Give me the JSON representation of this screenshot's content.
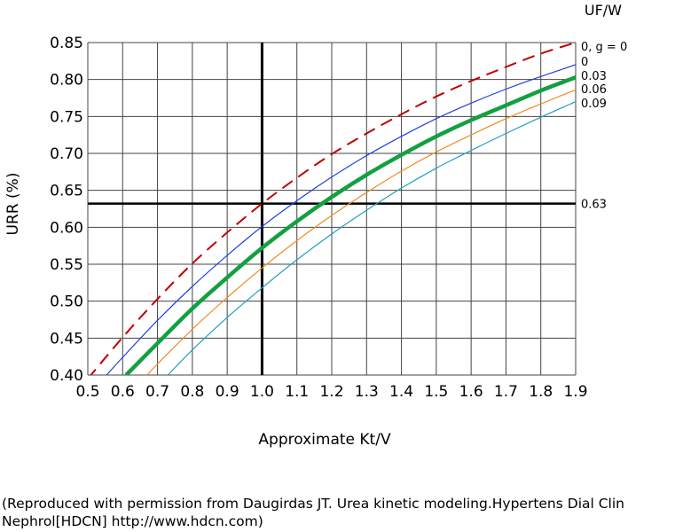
{
  "chart_data": {
    "type": "line",
    "xlabel": "Approximate Kt/V",
    "ylabel": "URR (%)",
    "legend_title": "UF/W",
    "xlim": [
      0.5,
      1.9
    ],
    "ylim": [
      0.4,
      0.85
    ],
    "x_ticks": [
      "0.5",
      "0.6",
      "0.7",
      "0.8",
      "0.9",
      "1.0",
      "1.1",
      "1.2",
      "1.3",
      "1.4",
      "1.5",
      "1.6",
      "1.7",
      "1.8",
      "1.9"
    ],
    "y_ticks": [
      "0.40",
      "0.45",
      "0.50",
      "0.55",
      "0.60",
      "0.65",
      "0.70",
      "0.75",
      "0.80",
      "0.85"
    ],
    "grid": true,
    "reference_lines": [
      {
        "axis": "x",
        "value": 1.0
      },
      {
        "axis": "y",
        "value": 0.632,
        "label": "0.63"
      }
    ],
    "series": [
      {
        "name": "0, g = 0",
        "color": "#c00000",
        "style": "dashed",
        "x": [
          0.5,
          0.6,
          0.7,
          0.8,
          0.9,
          1.0,
          1.1,
          1.2,
          1.3,
          1.4,
          1.5,
          1.6,
          1.7,
          1.8,
          1.9
        ],
        "values": [
          0.395,
          0.451,
          0.503,
          0.551,
          0.593,
          0.632,
          0.667,
          0.699,
          0.727,
          0.753,
          0.777,
          0.798,
          0.817,
          0.835,
          0.85
        ]
      },
      {
        "name": "0",
        "color": "#2040e0",
        "style": "solid",
        "x": [
          0.55,
          0.6,
          0.7,
          0.8,
          0.9,
          1.0,
          1.1,
          1.2,
          1.3,
          1.4,
          1.5,
          1.6,
          1.7,
          1.8,
          1.9
        ],
        "values": [
          0.398,
          0.424,
          0.474,
          0.52,
          0.562,
          0.601,
          0.636,
          0.668,
          0.697,
          0.723,
          0.747,
          0.768,
          0.787,
          0.804,
          0.82
        ]
      },
      {
        "name": "0.03",
        "color": "#12a040",
        "style": "solid-thick",
        "x": [
          0.61,
          0.7,
          0.8,
          0.9,
          1.0,
          1.1,
          1.2,
          1.3,
          1.4,
          1.5,
          1.6,
          1.7,
          1.8,
          1.9
        ],
        "values": [
          0.4,
          0.443,
          0.49,
          0.532,
          0.572,
          0.608,
          0.641,
          0.671,
          0.698,
          0.723,
          0.745,
          0.765,
          0.785,
          0.803
        ]
      },
      {
        "name": "0.06",
        "color": "#f08a20",
        "style": "solid",
        "x": [
          0.67,
          0.7,
          0.8,
          0.9,
          1.0,
          1.1,
          1.2,
          1.3,
          1.4,
          1.5,
          1.6,
          1.7,
          1.8,
          1.9
        ],
        "values": [
          0.4,
          0.415,
          0.462,
          0.505,
          0.545,
          0.582,
          0.616,
          0.647,
          0.676,
          0.702,
          0.725,
          0.747,
          0.767,
          0.786
        ]
      },
      {
        "name": "0.09",
        "color": "#20a0c0",
        "style": "solid",
        "x": [
          0.73,
          0.8,
          0.9,
          1.0,
          1.1,
          1.2,
          1.3,
          1.4,
          1.5,
          1.6,
          1.7,
          1.8,
          1.9
        ],
        "values": [
          0.4,
          0.434,
          0.478,
          0.518,
          0.556,
          0.591,
          0.623,
          0.653,
          0.68,
          0.704,
          0.727,
          0.749,
          0.77
        ]
      }
    ]
  },
  "caption": {
    "line1": "(Reproduced with permission from Daugirdas JT. Urea kinetic modeling.Hypertens Dial Clin",
    "line2": " Nephrol[HDCN] http://www.hdcn.com)"
  }
}
